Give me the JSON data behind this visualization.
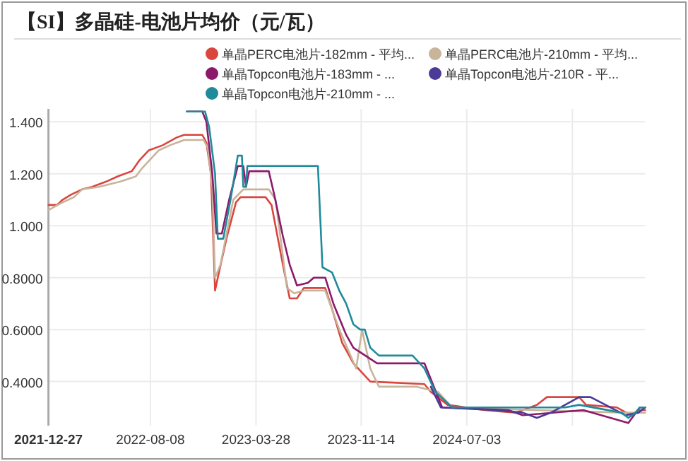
{
  "chart_data": {
    "type": "line",
    "title": "【SI】多晶硅-电池片均价（元/瓦）",
    "legend": "top",
    "grid": true,
    "marker": "none",
    "line_style": "solid",
    "xlim": [
      "2021-12-27",
      "2025-07-30"
    ],
    "xticks": [
      {
        "value": "2021-12-27",
        "label": "2021-12-27"
      },
      {
        "value": "2022-08-08",
        "label": "2022-08-08"
      },
      {
        "value": "2023-03-28",
        "label": "2023-03-28"
      },
      {
        "value": "2023-11-14",
        "label": "2023-11-14"
      },
      {
        "value": "2024-07-03",
        "label": "2024-07-03"
      },
      {
        "value": "2025-02-20",
        "label": null
      }
    ],
    "ylim": [
      0.23,
      1.45
    ],
    "yticks": [
      {
        "value": 0.4,
        "label": "0.4000"
      },
      {
        "value": 0.6,
        "label": "0.6000"
      },
      {
        "value": 0.8,
        "label": "0.8000"
      },
      {
        "value": 1.0,
        "label": "1.000"
      },
      {
        "value": 1.2,
        "label": "1.200"
      },
      {
        "value": 1.4,
        "label": "1.400"
      }
    ],
    "series": [
      {
        "name": "单晶PERC电池片-182mm - 平均...",
        "color": "#d9463e",
        "x": [
          "2021-12-27",
          "2022-01-15",
          "2022-01-27",
          "2022-02-15",
          "2022-03-11",
          "2022-04-02",
          "2022-05-03",
          "2022-05-28",
          "2022-06-28",
          "2022-07-14",
          "2022-08-04",
          "2022-09-04",
          "2022-10-05",
          "2022-10-21",
          "2022-11-30",
          "2022-12-09",
          "2022-12-19",
          "2022-12-28",
          "2023-01-03",
          "2023-01-22",
          "2023-02-12",
          "2023-02-22",
          "2023-04-18",
          "2023-05-01",
          "2023-05-26",
          "2023-06-10",
          "2023-06-26",
          "2023-07-11",
          "2023-08-27",
          "2023-09-11",
          "2023-10-03",
          "2023-10-28",
          "2023-12-04",
          "2024-04-01",
          "2024-04-15",
          "2024-05-22",
          "2024-08-11",
          "2024-10-18",
          "2024-12-04",
          "2024-12-26",
          "2025-03-07",
          "2025-03-22",
          "2025-05-29",
          "2025-06-29",
          "2025-07-15",
          "2025-07-30"
        ],
        "values": [
          1.08,
          1.08,
          1.1,
          1.12,
          1.14,
          1.15,
          1.17,
          1.19,
          1.21,
          1.25,
          1.29,
          1.31,
          1.34,
          1.35,
          1.35,
          1.32,
          1.2,
          0.75,
          0.8,
          0.95,
          1.09,
          1.11,
          1.11,
          1.08,
          0.85,
          0.72,
          0.72,
          0.76,
          0.76,
          0.68,
          0.55,
          0.47,
          0.4,
          0.39,
          0.36,
          0.31,
          0.29,
          0.28,
          0.31,
          0.34,
          0.34,
          0.31,
          0.3,
          0.27,
          0.29,
          0.29
        ]
      },
      {
        "name": "单晶PERC电池片-210mm - 平均...",
        "color": "#c8b49a",
        "x": [
          "2021-12-27",
          "2022-01-27",
          "2022-02-21",
          "2022-03-11",
          "2022-04-17",
          "2022-06-03",
          "2022-07-07",
          "2022-07-20",
          "2022-08-26",
          "2022-09-20",
          "2022-10-21",
          "2022-12-03",
          "2022-12-12",
          "2022-12-22",
          "2022-12-28",
          "2023-01-09",
          "2023-02-06",
          "2023-02-28",
          "2023-04-25",
          "2023-05-10",
          "2023-06-04",
          "2023-06-20",
          "2023-07-11",
          "2023-08-27",
          "2023-09-27",
          "2023-11-03",
          "2023-11-16",
          "2023-12-04",
          "2023-12-23",
          "2024-03-15",
          "2024-05-01",
          "2024-06-01",
          "2025-06-08",
          "2025-07-30"
        ],
        "values": [
          1.06,
          1.09,
          1.11,
          1.14,
          1.15,
          1.17,
          1.19,
          1.22,
          1.29,
          1.31,
          1.33,
          1.33,
          1.3,
          1.15,
          0.8,
          0.85,
          1.1,
          1.14,
          1.14,
          1.1,
          0.76,
          0.74,
          0.75,
          0.75,
          0.6,
          0.45,
          0.6,
          0.45,
          0.38,
          0.38,
          0.36,
          0.3,
          0.28,
          0.28
        ]
      },
      {
        "name": "单晶Topcon电池片-183mm - ...",
        "color": "#8b1a6b",
        "x": [
          "2022-10-27",
          "2022-11-30",
          "2022-12-09",
          "2022-12-22",
          "2022-12-31",
          "2023-01-12",
          "2023-01-28",
          "2023-02-16",
          "2023-02-28",
          "2023-03-06",
          "2023-03-13",
          "2023-04-25",
          "2023-05-07",
          "2023-05-26",
          "2023-06-10",
          "2023-06-26",
          "2023-07-20",
          "2023-08-02",
          "2023-08-27",
          "2023-09-14",
          "2023-10-12",
          "2023-10-28",
          "2023-12-19",
          "2024-04-01",
          "2024-05-10",
          "2024-10-02",
          "2024-11-03",
          "2025-03-16",
          "2025-06-23",
          "2025-07-18",
          "2025-07-30"
        ],
        "values": [
          1.44,
          1.44,
          1.4,
          1.2,
          0.97,
          0.97,
          1.1,
          1.23,
          1.23,
          1.15,
          1.21,
          1.21,
          1.12,
          0.96,
          0.85,
          0.77,
          0.78,
          0.8,
          0.8,
          0.7,
          0.58,
          0.53,
          0.47,
          0.47,
          0.3,
          0.29,
          0.27,
          0.29,
          0.24,
          0.3,
          0.3
        ]
      },
      {
        "name": "单晶Topcon电池片-210R - 平...",
        "color": "#4b3a96",
        "x": [
          "2024-04-15",
          "2024-05-07",
          "2024-09-02",
          "2024-11-03",
          "2024-12-04",
          "2025-01-04",
          "2025-03-07",
          "2025-04-01",
          "2025-06-17",
          "2025-07-15",
          "2025-07-30"
        ],
        "values": [
          0.38,
          0.3,
          0.29,
          0.28,
          0.26,
          0.28,
          0.34,
          0.34,
          0.27,
          0.28,
          0.3
        ]
      },
      {
        "name": "单晶Topcon电池片-210mm - ...",
        "color": "#1f8a9a",
        "x": [
          "2022-10-27",
          "2022-12-06",
          "2022-12-15",
          "2022-12-28",
          "2023-01-03",
          "2023-01-15",
          "2023-01-31",
          "2023-02-16",
          "2023-02-25",
          "2023-02-28",
          "2023-03-06",
          "2023-03-09",
          "2023-08-11",
          "2023-08-21",
          "2023-09-11",
          "2023-09-27",
          "2023-10-12",
          "2023-10-28",
          "2023-11-12",
          "2023-11-22",
          "2023-12-04",
          "2023-12-23",
          "2024-03-06",
          "2024-04-01",
          "2024-04-25",
          "2024-06-01",
          "2025-02-04",
          "2025-03-07",
          "2025-06-08",
          "2025-06-23",
          "2025-07-09",
          "2025-07-18",
          "2025-07-30"
        ],
        "values": [
          1.44,
          1.44,
          1.38,
          1.2,
          0.95,
          0.95,
          1.1,
          1.27,
          1.27,
          1.15,
          1.15,
          1.23,
          1.23,
          0.84,
          0.82,
          0.75,
          0.7,
          0.62,
          0.6,
          0.6,
          0.53,
          0.5,
          0.5,
          0.45,
          0.36,
          0.3,
          0.3,
          0.31,
          0.28,
          0.26,
          0.28,
          0.3,
          0.3
        ]
      }
    ]
  }
}
